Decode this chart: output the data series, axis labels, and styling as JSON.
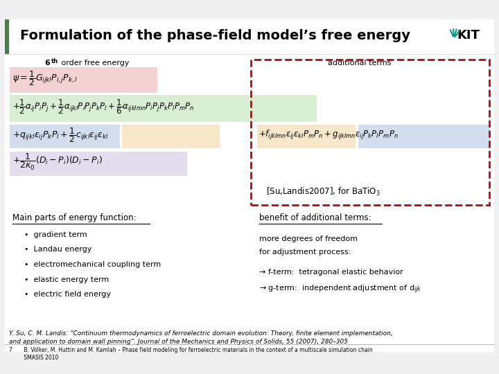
{
  "title": "Formulation of the phase-field model’s free energy",
  "sixth_order_label": "6",
  "sixth_order_sup": "th",
  "sixth_order_text": " order free energy",
  "additional_terms_label": "additional terms",
  "ref_label": "[Su,Landis2007], for BaTiO$_3$",
  "main_parts_title": "Main parts of energy function:",
  "main_parts_items": [
    "gradient term",
    "Landau energy",
    "electromechanical coupling term",
    "elastic energy term",
    "electric field energy"
  ],
  "benefit_title": "benefit of additional terms:",
  "benefit_text1": "more degrees of freedom",
  "benefit_text2": "for adjustment process:",
  "benefit_text3": "→ f-term:  tetragonal elastic behavior",
  "benefit_text4": "→ g-term:  independent adjustment of d",
  "benefit_sub4": "ijk",
  "citation1": "Y. Su, C. M. Landis: “Continuum thermodynamics of ferroelectric domain evolution: Theory, finite element implementation,",
  "citation2": "and application to domain wall pinning”. Journal of the Mechanics and Physics of Solids, 55 (2007), 280–305",
  "footer1": "7       B. Völker, M. Huttin and M. Kamlah – Phase field modeling for ferroelectric materials in the context of a multiscale simulation chain",
  "footer2": "         SMASIS 2010",
  "bg_color": "#f0f0f0",
  "header_bar_color": "#4a7c4e",
  "dashed_box_color": "#cc0000",
  "bg_highlight_pink": "#f2c0c0",
  "bg_highlight_green": "#c8e8c0",
  "bg_highlight_blue_light": "#c0d0e8",
  "bg_highlight_orange": "#f5deb3",
  "bg_highlight_lavender": "#d8d0e8"
}
